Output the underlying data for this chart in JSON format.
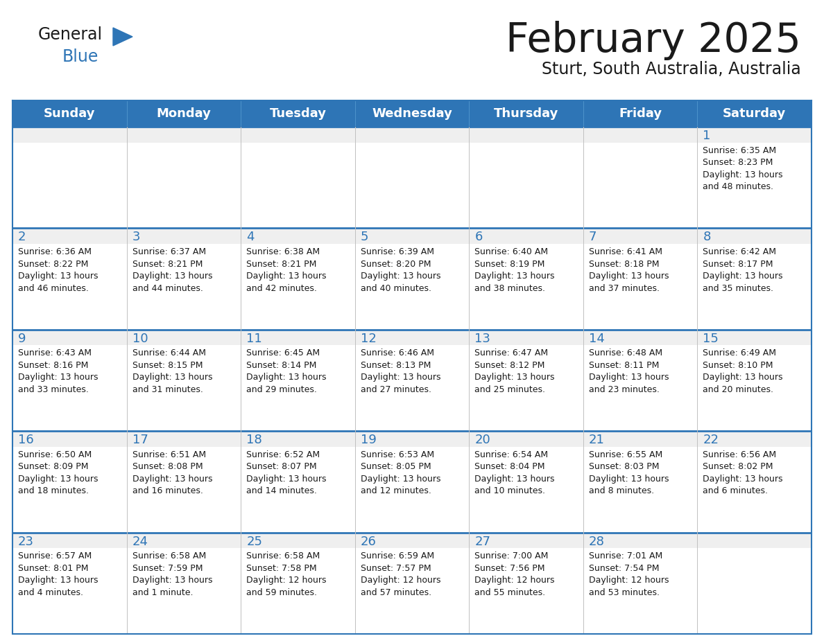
{
  "title": "February 2025",
  "subtitle": "Sturt, South Australia, Australia",
  "header_bg": "#2E75B6",
  "header_text_color": "#FFFFFF",
  "cell_bg_light": "#EFEFEF",
  "cell_bg_white": "#FFFFFF",
  "cell_border_color": "#2E75B6",
  "day_number_color": "#2E75B6",
  "cell_text_color": "#1a1a1a",
  "background_color": "#FFFFFF",
  "days_of_week": [
    "Sunday",
    "Monday",
    "Tuesday",
    "Wednesday",
    "Thursday",
    "Friday",
    "Saturday"
  ],
  "logo_general_color": "#1a1a1a",
  "logo_blue_color": "#2E75B6",
  "calendar_data": [
    [
      null,
      null,
      null,
      null,
      null,
      null,
      {
        "day": 1,
        "sunrise": "6:35 AM",
        "sunset": "8:23 PM",
        "daylight": "13 hours\nand 48 minutes."
      }
    ],
    [
      {
        "day": 2,
        "sunrise": "6:36 AM",
        "sunset": "8:22 PM",
        "daylight": "13 hours\nand 46 minutes."
      },
      {
        "day": 3,
        "sunrise": "6:37 AM",
        "sunset": "8:21 PM",
        "daylight": "13 hours\nand 44 minutes."
      },
      {
        "day": 4,
        "sunrise": "6:38 AM",
        "sunset": "8:21 PM",
        "daylight": "13 hours\nand 42 minutes."
      },
      {
        "day": 5,
        "sunrise": "6:39 AM",
        "sunset": "8:20 PM",
        "daylight": "13 hours\nand 40 minutes."
      },
      {
        "day": 6,
        "sunrise": "6:40 AM",
        "sunset": "8:19 PM",
        "daylight": "13 hours\nand 38 minutes."
      },
      {
        "day": 7,
        "sunrise": "6:41 AM",
        "sunset": "8:18 PM",
        "daylight": "13 hours\nand 37 minutes."
      },
      {
        "day": 8,
        "sunrise": "6:42 AM",
        "sunset": "8:17 PM",
        "daylight": "13 hours\nand 35 minutes."
      }
    ],
    [
      {
        "day": 9,
        "sunrise": "6:43 AM",
        "sunset": "8:16 PM",
        "daylight": "13 hours\nand 33 minutes."
      },
      {
        "day": 10,
        "sunrise": "6:44 AM",
        "sunset": "8:15 PM",
        "daylight": "13 hours\nand 31 minutes."
      },
      {
        "day": 11,
        "sunrise": "6:45 AM",
        "sunset": "8:14 PM",
        "daylight": "13 hours\nand 29 minutes."
      },
      {
        "day": 12,
        "sunrise": "6:46 AM",
        "sunset": "8:13 PM",
        "daylight": "13 hours\nand 27 minutes."
      },
      {
        "day": 13,
        "sunrise": "6:47 AM",
        "sunset": "8:12 PM",
        "daylight": "13 hours\nand 25 minutes."
      },
      {
        "day": 14,
        "sunrise": "6:48 AM",
        "sunset": "8:11 PM",
        "daylight": "13 hours\nand 23 minutes."
      },
      {
        "day": 15,
        "sunrise": "6:49 AM",
        "sunset": "8:10 PM",
        "daylight": "13 hours\nand 20 minutes."
      }
    ],
    [
      {
        "day": 16,
        "sunrise": "6:50 AM",
        "sunset": "8:09 PM",
        "daylight": "13 hours\nand 18 minutes."
      },
      {
        "day": 17,
        "sunrise": "6:51 AM",
        "sunset": "8:08 PM",
        "daylight": "13 hours\nand 16 minutes."
      },
      {
        "day": 18,
        "sunrise": "6:52 AM",
        "sunset": "8:07 PM",
        "daylight": "13 hours\nand 14 minutes."
      },
      {
        "day": 19,
        "sunrise": "6:53 AM",
        "sunset": "8:05 PM",
        "daylight": "13 hours\nand 12 minutes."
      },
      {
        "day": 20,
        "sunrise": "6:54 AM",
        "sunset": "8:04 PM",
        "daylight": "13 hours\nand 10 minutes."
      },
      {
        "day": 21,
        "sunrise": "6:55 AM",
        "sunset": "8:03 PM",
        "daylight": "13 hours\nand 8 minutes."
      },
      {
        "day": 22,
        "sunrise": "6:56 AM",
        "sunset": "8:02 PM",
        "daylight": "13 hours\nand 6 minutes."
      }
    ],
    [
      {
        "day": 23,
        "sunrise": "6:57 AM",
        "sunset": "8:01 PM",
        "daylight": "13 hours\nand 4 minutes."
      },
      {
        "day": 24,
        "sunrise": "6:58 AM",
        "sunset": "7:59 PM",
        "daylight": "13 hours\nand 1 minute."
      },
      {
        "day": 25,
        "sunrise": "6:58 AM",
        "sunset": "7:58 PM",
        "daylight": "12 hours\nand 59 minutes."
      },
      {
        "day": 26,
        "sunrise": "6:59 AM",
        "sunset": "7:57 PM",
        "daylight": "12 hours\nand 57 minutes."
      },
      {
        "day": 27,
        "sunrise": "7:00 AM",
        "sunset": "7:56 PM",
        "daylight": "12 hours\nand 55 minutes."
      },
      {
        "day": 28,
        "sunrise": "7:01 AM",
        "sunset": "7:54 PM",
        "daylight": "12 hours\nand 53 minutes."
      },
      null
    ]
  ]
}
